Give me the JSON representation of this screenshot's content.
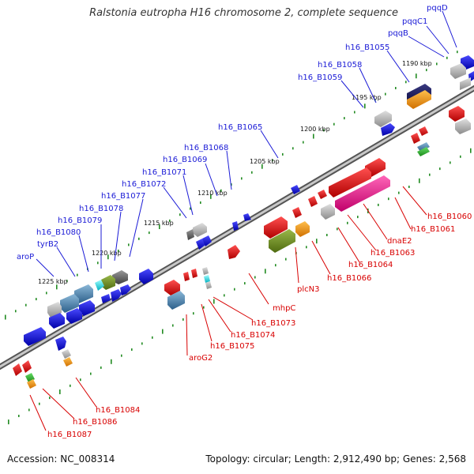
{
  "title": "Ralstonia eutropha H16 chromosome 2, complete sequence",
  "footer": {
    "accession": "Accession: NC_008314",
    "topology": "Topology: circular; Length: 2,912,490 bp; Genes: 2,568"
  },
  "kbp_labels": [
    "1190 kbp",
    "1195 kbp",
    "1200 kbp",
    "1205 kbp",
    "1210 kbp",
    "1215 kbp",
    "1220 kbp",
    "1225 kbp"
  ],
  "top_labels": [
    "pqqD",
    "pqqC1",
    "pqqB",
    "h16_B1055",
    "h16_B1058",
    "h16_B1059",
    "h16_B1065",
    "h16_B1068",
    "h16_B1069",
    "h16_B1071",
    "h16_B1072",
    "h16_B1077",
    "h16_B1078",
    "h16_B1079",
    "h16_B1080",
    "tyrB2",
    "aroP"
  ],
  "bottom_labels": [
    "h16_B1060",
    "h16_B1061",
    "dnaE2",
    "h16_B1063",
    "h16_B1064",
    "h16_B1066",
    "plcN3",
    "mhpC",
    "h16_B1073",
    "h16_B1074",
    "h16_B1075",
    "aroG2",
    "h16_B1084",
    "h16_B1086",
    "h16_B1087"
  ],
  "colors": {
    "forward_gene": "#1a1ad6",
    "reverse_gene": "#e60000",
    "pseudo_gene": "#b4b4b4",
    "rna_gene": "#e6148c",
    "olive_gene": "#6b8e23",
    "orange_gene": "#ff9900",
    "teal_gene": "#4682b4",
    "backbone": "#888888",
    "tick_dots": "#228b22"
  }
}
